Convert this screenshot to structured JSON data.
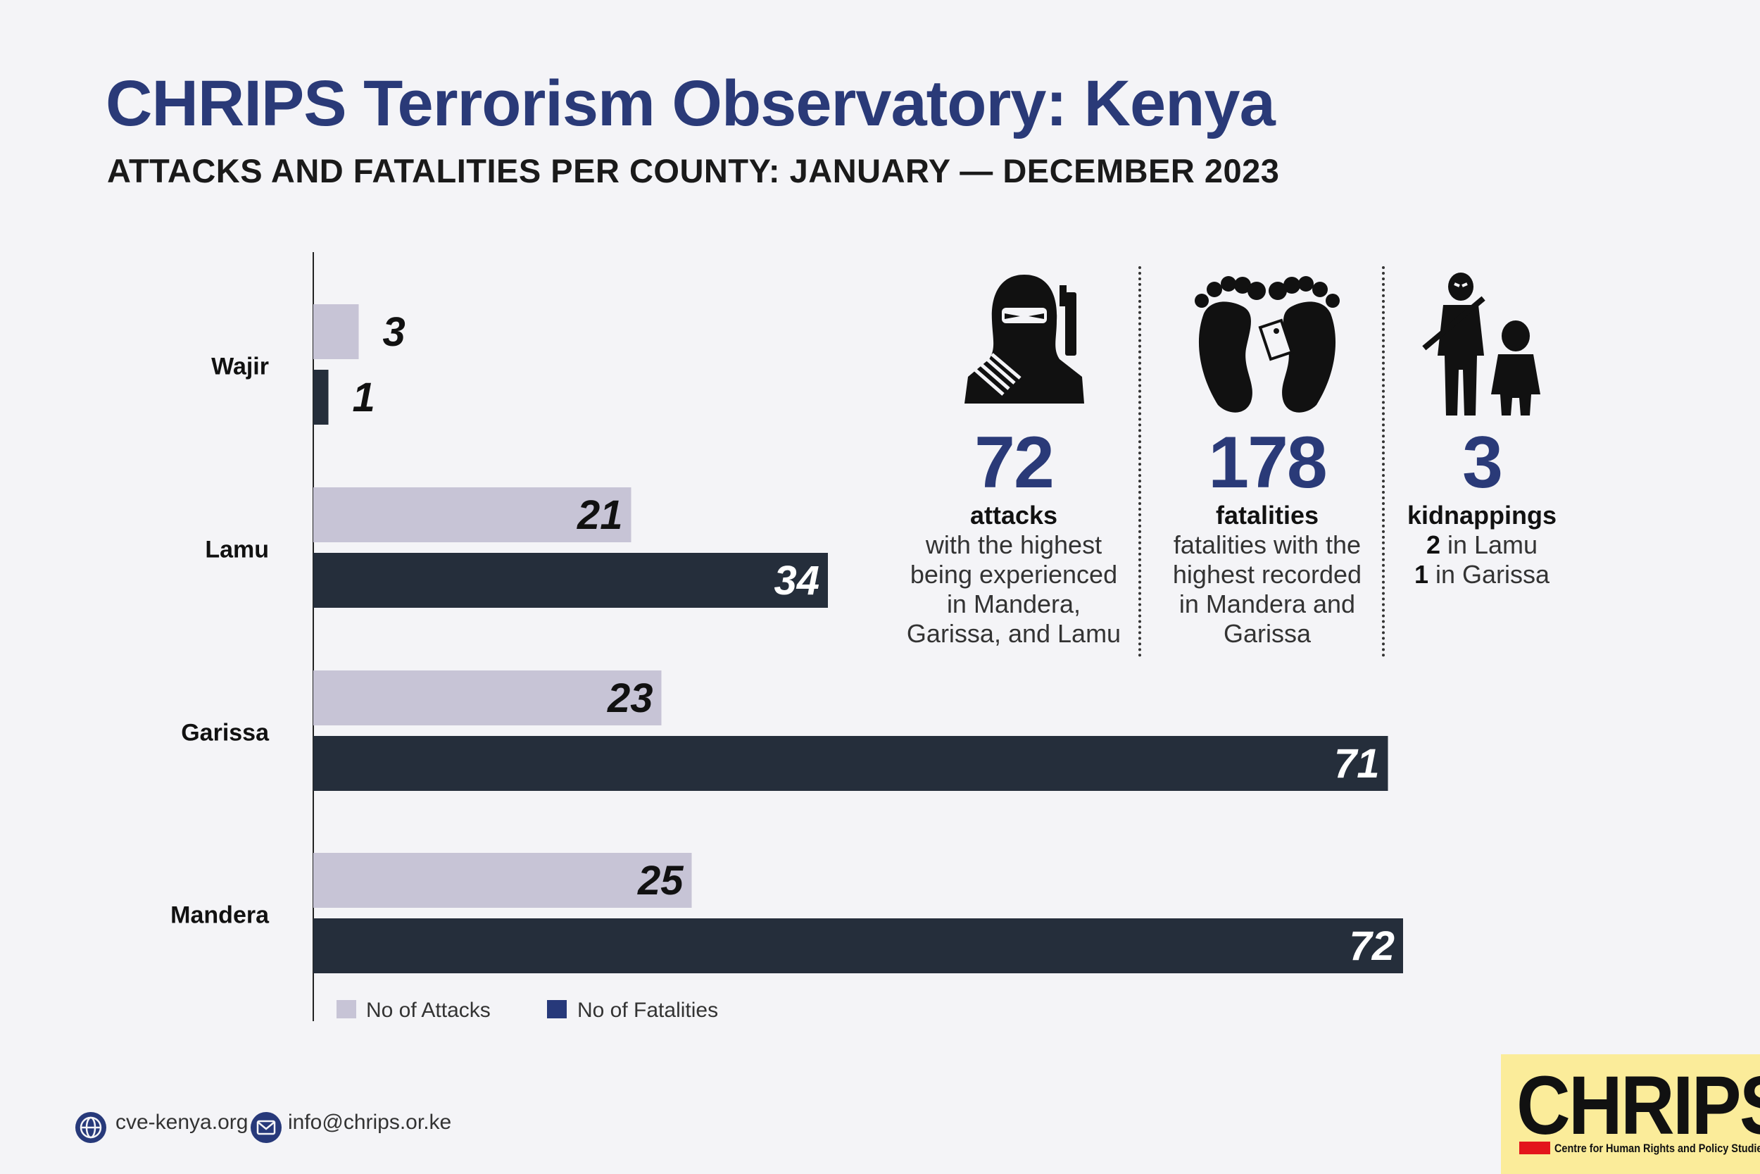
{
  "header": {
    "title": "CHRIPS Terrorism Observatory: Kenya",
    "subtitle": "ATTACKS AND FATALITIES PER COUNTY: JANUARY — DECEMBER 2023"
  },
  "chart_data": {
    "type": "bar",
    "orientation": "horizontal",
    "categories": [
      "Wajir",
      "Lamu",
      "Garissa",
      "Mandera"
    ],
    "series": [
      {
        "name": "No of Attacks",
        "values": [
          3,
          21,
          23,
          25
        ],
        "color": "#c7c4d6"
      },
      {
        "name": "No of Fatalities",
        "values": [
          1,
          34,
          71,
          72
        ],
        "color": "#252e3b"
      }
    ],
    "data_labels": true,
    "legend_placement": "bottom-left",
    "grid": false
  },
  "stats": [
    {
      "value": "72",
      "label": "attacks",
      "lines": [
        "with the highest",
        "being experienced",
        "in Mandera,",
        "Garissa, and Lamu"
      ],
      "icon": "militant-icon"
    },
    {
      "value": "178",
      "label": "fatalities",
      "lines": [
        "fatalities with the",
        "highest recorded",
        "in Mandera and",
        "Garissa"
      ],
      "icon": "feet-tag-icon"
    },
    {
      "value": "3",
      "label": "kidnappings",
      "detail": [
        {
          "num": "2",
          "text": " in Lamu"
        },
        {
          "num": "1",
          "text": " in Garissa"
        }
      ],
      "icon": "kidnapper-icon"
    }
  ],
  "footer": {
    "website": "cve-kenya.org",
    "email": "info@chrips.or.ke",
    "website_icon": "globe-icon",
    "email_icon": "mail-icon"
  },
  "logo": {
    "name": "CHRIPS",
    "tagline": "Centre for Human Rights and Policy Studies"
  },
  "colors": {
    "title": "#2a3a78",
    "accent_number": "#2a3a78",
    "logo_bg": "#fbec9a",
    "logo_red": "#e3151b"
  }
}
